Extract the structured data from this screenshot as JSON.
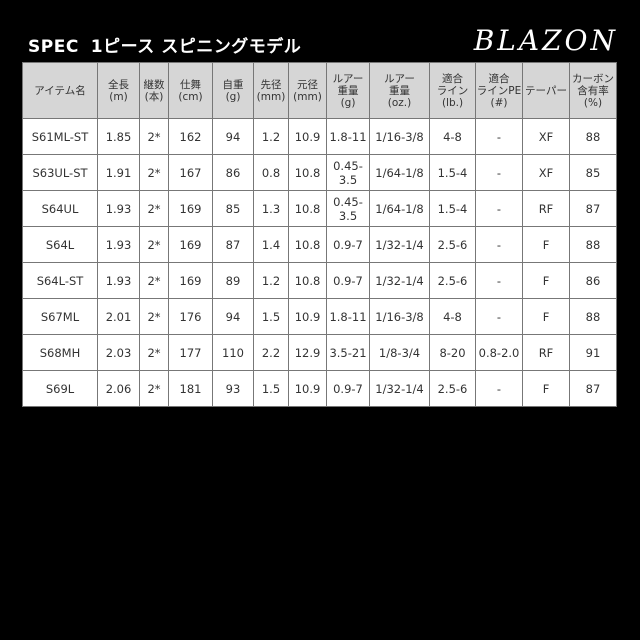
{
  "header": {
    "spec": "SPEC",
    "subtitle": "1ピース スピニングモデル",
    "logo": "BLAZON"
  },
  "table": {
    "columns": [
      "アイテム名",
      "全長\n(m)",
      "継数\n(本)",
      "仕舞\n(cm)",
      "自重\n(g)",
      "先径\n(mm)",
      "元径\n(mm)",
      "ルアー\n重量\n(g)",
      "ルアー\n重量\n(oz.)",
      "適合\nライン\n(lb.)",
      "適合\nラインPE\n(#)",
      "テーパー",
      "カーボン\n含有率\n(%)"
    ],
    "rows": [
      [
        "S61ML-ST",
        "1.85",
        "2*",
        "162",
        "94",
        "1.2",
        "10.9",
        "1.8-11",
        "1/16-3/8",
        "4-8",
        "-",
        "XF",
        "88"
      ],
      [
        "S63UL-ST",
        "1.91",
        "2*",
        "167",
        "86",
        "0.8",
        "10.8",
        "0.45-3.5",
        "1/64-1/8",
        "1.5-4",
        "-",
        "XF",
        "85"
      ],
      [
        "S64UL",
        "1.93",
        "2*",
        "169",
        "85",
        "1.3",
        "10.8",
        "0.45-3.5",
        "1/64-1/8",
        "1.5-4",
        "-",
        "RF",
        "87"
      ],
      [
        "S64L",
        "1.93",
        "2*",
        "169",
        "87",
        "1.4",
        "10.8",
        "0.9-7",
        "1/32-1/4",
        "2.5-6",
        "-",
        "F",
        "88"
      ],
      [
        "S64L-ST",
        "1.93",
        "2*",
        "169",
        "89",
        "1.2",
        "10.8",
        "0.9-7",
        "1/32-1/4",
        "2.5-6",
        "-",
        "F",
        "86"
      ],
      [
        "S67ML",
        "2.01",
        "2*",
        "176",
        "94",
        "1.5",
        "10.9",
        "1.8-11",
        "1/16-3/8",
        "4-8",
        "-",
        "F",
        "88"
      ],
      [
        "S68MH",
        "2.03",
        "2*",
        "177",
        "110",
        "2.2",
        "12.9",
        "3.5-21",
        "1/8-3/4",
        "8-20",
        "0.8-2.0",
        "RF",
        "91"
      ],
      [
        "S69L",
        "2.06",
        "2*",
        "181",
        "93",
        "1.5",
        "10.9",
        "0.9-7",
        "1/32-1/4",
        "2.5-6",
        "-",
        "F",
        "87"
      ]
    ]
  }
}
